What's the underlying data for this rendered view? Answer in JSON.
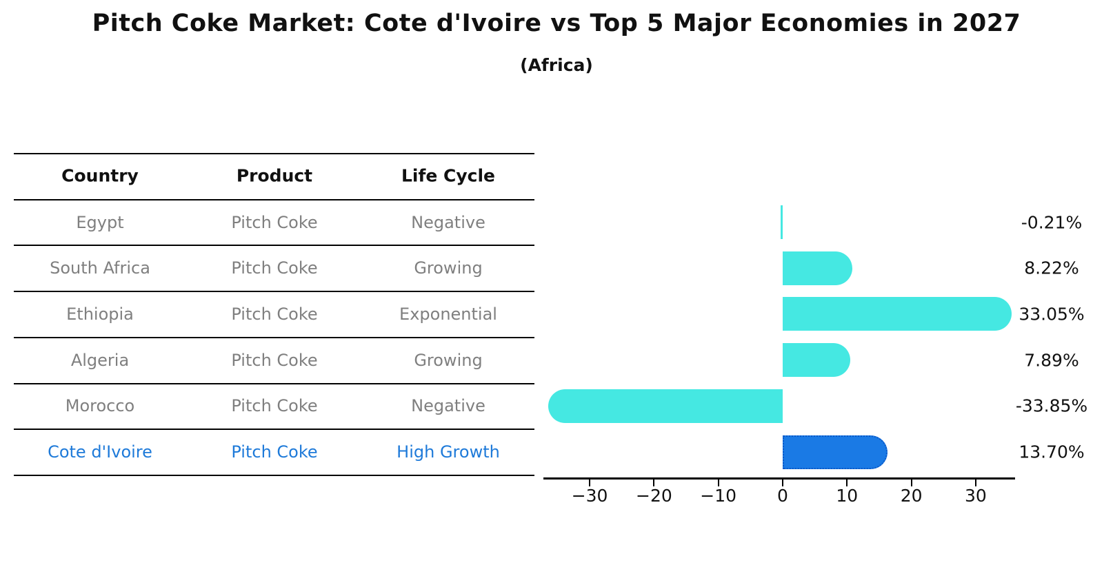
{
  "title": "Pitch Coke Market: Cote d'Ivoire vs Top 5 Major Economies in 2027",
  "subtitle": "(Africa)",
  "table": {
    "headers": [
      "Country",
      "Product",
      "Life Cycle"
    ],
    "rows": [
      {
        "country": "Egypt",
        "product": "Pitch Coke",
        "life_cycle": "Negative",
        "highlight": false
      },
      {
        "country": "South Africa",
        "product": "Pitch Coke",
        "life_cycle": "Growing",
        "highlight": false
      },
      {
        "country": "Ethiopia",
        "product": "Pitch Coke",
        "life_cycle": "Exponential",
        "highlight": false
      },
      {
        "country": "Algeria",
        "product": "Pitch Coke",
        "life_cycle": "Growing",
        "highlight": false
      },
      {
        "country": "Morocco",
        "product": "Pitch Coke",
        "life_cycle": "Negative",
        "highlight": false
      },
      {
        "country": "Cote d'Ivoire",
        "product": "Pitch Coke",
        "life_cycle": "High Growth",
        "highlight": true
      }
    ]
  },
  "chart_data": {
    "type": "bar",
    "orientation": "horizontal",
    "categories": [
      "Egypt",
      "South Africa",
      "Ethiopia",
      "Algeria",
      "Morocco",
      "Cote d'Ivoire"
    ],
    "values": [
      -0.21,
      8.22,
      33.05,
      7.89,
      -33.85,
      13.7
    ],
    "value_labels": [
      "-0.21%",
      "8.22%",
      "33.05%",
      "7.89%",
      "-33.85%",
      "13.70%"
    ],
    "x_ticks": [
      -30,
      -20,
      -10,
      0,
      10,
      20,
      30
    ],
    "x_tick_labels": [
      "−30",
      "−20",
      "−10",
      "0",
      "10",
      "20",
      "30"
    ],
    "xlim": [
      -37.5,
      36.5
    ],
    "highlight_index": 5,
    "bar_color": "#45E8E2",
    "highlight_color": "#1A7AE5",
    "highlight_border_color": "#0A58C8",
    "value_label_color": "#111111",
    "grid": false,
    "legend": false
  },
  "colors": {
    "table_text": "#7f7f7f",
    "highlight_text": "#1E7AD9",
    "header_text": "#111111",
    "line": "#000000"
  }
}
